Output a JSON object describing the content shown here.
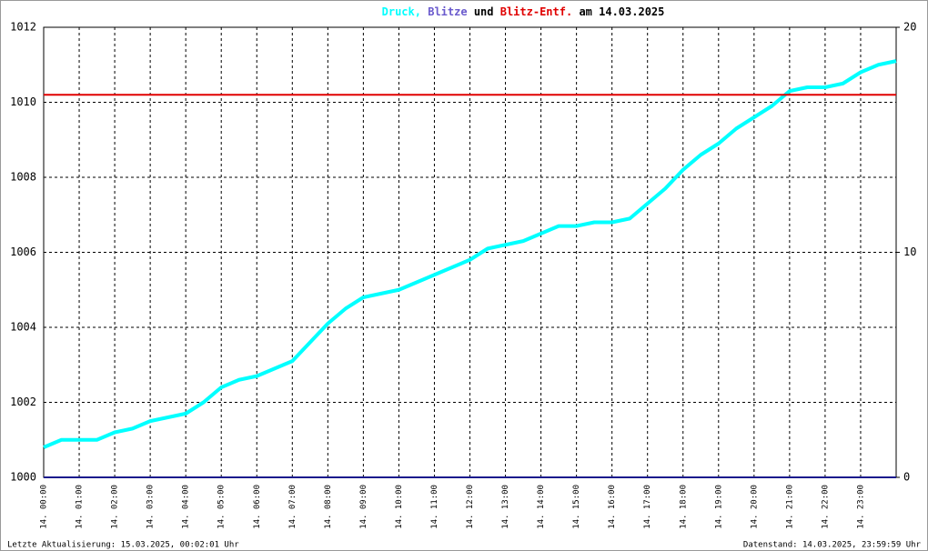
{
  "chart_data": {
    "type": "line",
    "title_separator": ",",
    "title_connector": "und",
    "title_date": "am 14.03.2025",
    "footer_left": "Letzte Aktualisierung: 15.03.2025, 00:02:01 Uhr",
    "footer_right": "Datenstand: 14.03.2025, 23:59:59 Uhr",
    "xlim": [
      0,
      24
    ],
    "xticks": [
      {
        "value": 0,
        "label": "14. 00:00"
      },
      {
        "value": 1,
        "label": "14. 01:00"
      },
      {
        "value": 2,
        "label": "14. 02:00"
      },
      {
        "value": 3,
        "label": "14. 03:00"
      },
      {
        "value": 4,
        "label": "14. 04:00"
      },
      {
        "value": 5,
        "label": "14. 05:00"
      },
      {
        "value": 6,
        "label": "14. 06:00"
      },
      {
        "value": 7,
        "label": "14. 07:00"
      },
      {
        "value": 8,
        "label": "14. 08:00"
      },
      {
        "value": 9,
        "label": "14. 09:00"
      },
      {
        "value": 10,
        "label": "14. 10:00"
      },
      {
        "value": 11,
        "label": "14. 11:00"
      },
      {
        "value": 12,
        "label": "14. 12:00"
      },
      {
        "value": 13,
        "label": "14. 13:00"
      },
      {
        "value": 14,
        "label": "14. 14:00"
      },
      {
        "value": 15,
        "label": "14. 15:00"
      },
      {
        "value": 16,
        "label": "14. 16:00"
      },
      {
        "value": 17,
        "label": "14. 17:00"
      },
      {
        "value": 18,
        "label": "14. 18:00"
      },
      {
        "value": 19,
        "label": "14. 19:00"
      },
      {
        "value": 20,
        "label": "14. 20:00"
      },
      {
        "value": 21,
        "label": "14. 21:00"
      },
      {
        "value": 22,
        "label": "14. 22:00"
      },
      {
        "value": 23,
        "label": "14. 23:00"
      }
    ],
    "ylim": [
      1000,
      1012
    ],
    "yticks": [
      1000,
      1002,
      1004,
      1006,
      1008,
      1010,
      1012
    ],
    "y2lim": [
      0,
      20
    ],
    "y2ticks": [
      0,
      10,
      20
    ],
    "grid": true,
    "series": [
      {
        "name": "Druck",
        "color": "#00ffff",
        "x": [
          0,
          0.5,
          1,
          1.5,
          2,
          2.5,
          3,
          3.5,
          4,
          4.5,
          5,
          5.5,
          6,
          6.5,
          7,
          7.5,
          8,
          8.5,
          9,
          9.5,
          10,
          10.5,
          11,
          11.5,
          12,
          12.5,
          13,
          13.5,
          14,
          14.5,
          15,
          15.5,
          16,
          16.5,
          17,
          17.5,
          18,
          18.5,
          19,
          19.5,
          20,
          20.5,
          21,
          21.5,
          22,
          22.5,
          23,
          23.5,
          24
        ],
        "values": [
          1000.8,
          1001.0,
          1001.0,
          1001.0,
          1001.2,
          1001.3,
          1001.5,
          1001.6,
          1001.7,
          1002.0,
          1002.4,
          1002.6,
          1002.7,
          1002.9,
          1003.1,
          1003.6,
          1004.1,
          1004.5,
          1004.8,
          1004.9,
          1005.0,
          1005.2,
          1005.4,
          1005.6,
          1005.8,
          1006.1,
          1006.2,
          1006.3,
          1006.5,
          1006.7,
          1006.7,
          1006.8,
          1006.8,
          1006.9,
          1007.3,
          1007.7,
          1008.2,
          1008.6,
          1008.9,
          1009.3,
          1009.6,
          1009.9,
          1010.3,
          1010.4,
          1010.4,
          1010.5,
          1010.8,
          1011.0,
          1011.1
        ]
      },
      {
        "name": "Blitze",
        "color": "#1a1a8c",
        "axis": "y2",
        "x": [
          0,
          24
        ],
        "values": [
          0,
          0
        ]
      },
      {
        "name": "Blitz-Entf.",
        "color": "#e00000",
        "axis": "y2",
        "x": [
          0,
          24
        ],
        "values": [
          17,
          17
        ]
      }
    ]
  }
}
